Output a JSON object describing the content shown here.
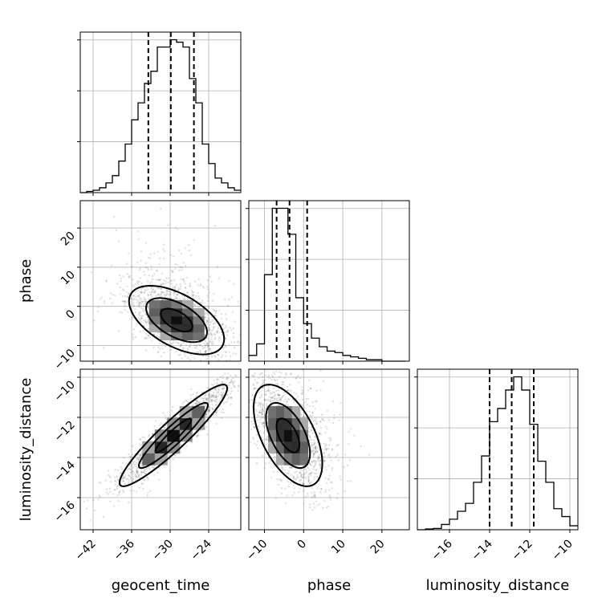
{
  "chart_data": {
    "type": "corner",
    "grid": true,
    "parameters": [
      {
        "id": "geocent_time",
        "label": "geocent_time",
        "range": [
          -44,
          -19
        ],
        "ticks": [
          -42,
          -36,
          -30,
          -24
        ],
        "tick_labels": [
          "−42",
          "−36",
          "−30",
          "−24"
        ],
        "quantiles": [
          -33.4,
          -29.9,
          -26.3
        ],
        "histogram": {
          "bin_start": -44,
          "bin_width": 1,
          "counts": [
            0,
            0.5,
            1,
            2,
            4,
            7,
            13,
            20,
            30,
            37,
            45,
            50,
            60,
            60,
            63,
            62,
            60,
            47,
            37,
            20,
            12,
            6,
            4,
            2,
            1
          ]
        }
      },
      {
        "id": "phase",
        "label": "phase",
        "range": [
          -14,
          27
        ],
        "ticks": [
          -10,
          0,
          10,
          20
        ],
        "tick_labels": [
          "−10",
          "0",
          "10",
          "20"
        ],
        "quantiles": [
          -6.9,
          -3.6,
          0.9
        ],
        "histogram": {
          "bin_start": -14,
          "bin_width": 2,
          "counts": [
            2,
            6,
            30,
            53,
            53,
            44,
            22,
            13,
            8,
            5,
            3.5,
            3,
            2,
            1.5,
            1,
            0.5,
            0.5,
            0,
            0,
            0
          ]
        }
      },
      {
        "id": "luminosity_distance",
        "label": "luminosity_distance",
        "range": [
          -17.6,
          -9.6
        ],
        "ticks": [
          -16,
          -14,
          -12,
          -10
        ],
        "tick_labels": [
          "−16",
          "−14",
          "−12",
          "−10"
        ],
        "quantiles": [
          -14,
          -12.9,
          -11.8
        ],
        "histogram": {
          "bin_start": -17.6,
          "bin_width": 0.4,
          "counts": [
            0,
            0.3,
            0.5,
            2,
            4,
            7,
            10,
            18,
            28,
            41,
            46,
            53,
            58,
            53,
            40,
            26,
            18,
            8,
            5,
            1.5
          ]
        }
      }
    ],
    "axis_labels": {
      "x": [
        "geocent_time",
        "phase",
        "luminosity_distance"
      ],
      "y": [
        "phase",
        "luminosity_distance"
      ]
    },
    "pairs": [
      {
        "x": "geocent_time",
        "y": "phase",
        "mean": [
          -29,
          -3.5
        ],
        "sd": [
          3.8,
          4.5
        ],
        "rho": -0.55
      },
      {
        "x": "geocent_time",
        "y": "luminosity_distance",
        "mean": [
          -29.5,
          -12.9
        ],
        "sd": [
          4.3,
          1.3
        ],
        "rho": 0.93
      },
      {
        "x": "phase",
        "y": "luminosity_distance",
        "mean": [
          -4,
          -12.9
        ],
        "sd": [
          4.5,
          1.3
        ],
        "rho": -0.55
      }
    ]
  }
}
